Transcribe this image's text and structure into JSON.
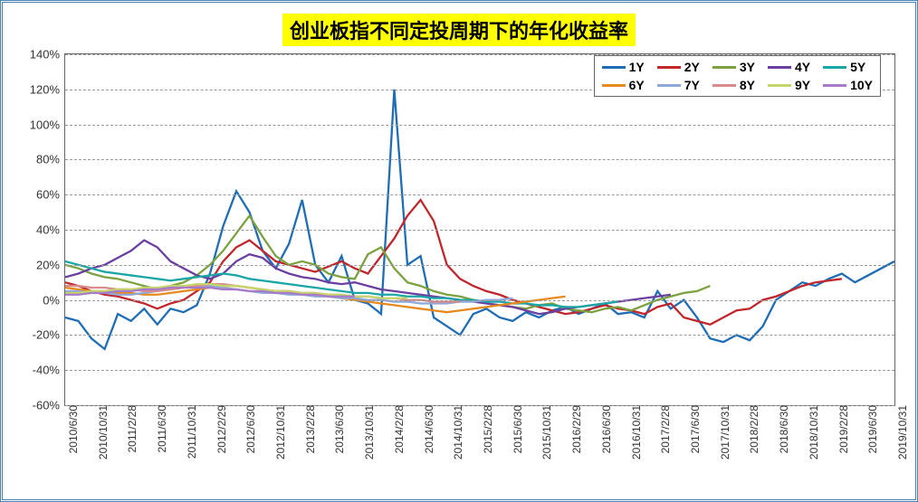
{
  "chart": {
    "type": "line",
    "title": "创业板指不同定投周期下的年化收益率",
    "title_bg": "#ffff00",
    "title_fontsize": 22,
    "background_color": "#ffffff",
    "frame_border": "#4682b4",
    "axis_color": "#666666",
    "grid_color": "#999999",
    "grid_dash": "4,3",
    "label_fontsize": 13,
    "xlabel_fontsize": 12,
    "ylim": [
      -60,
      140
    ],
    "ytick_step": 20,
    "yticks": [
      "-60%",
      "-40%",
      "-20%",
      "0%",
      "20%",
      "40%",
      "60%",
      "80%",
      "100%",
      "120%",
      "140%"
    ],
    "xticks": [
      "2010/6/30",
      "2010/10/31",
      "2011/2/28",
      "2011/6/30",
      "2011/10/31",
      "2012/2/29",
      "2012/6/30",
      "2012/10/31",
      "2013/2/28",
      "2013/6/30",
      "2013/10/31",
      "2014/2/28",
      "2014/6/30",
      "2014/10/31",
      "2015/2/28",
      "2015/6/30",
      "2015/10/31",
      "2016/2/29",
      "2016/6/30",
      "2016/10/31",
      "2017/2/28",
      "2017/6/30",
      "2017/10/31",
      "2018/2/28",
      "2018/6/30",
      "2018/10/31",
      "2019/2/28",
      "2019/6/30",
      "2019/10/31"
    ],
    "legend": {
      "position": "top-right",
      "border": "#666666",
      "bg": "#ffffff",
      "fontsize": 14,
      "fontweight": "bold"
    },
    "series": [
      {
        "name": "1Y",
        "color": "#1f6db5",
        "width": 2.3,
        "data": [
          -10,
          -12,
          -22,
          -28,
          -8,
          -12,
          -5,
          -14,
          -5,
          -7,
          -3,
          15,
          42,
          62,
          50,
          28,
          18,
          32,
          57,
          20,
          10,
          25,
          0,
          -2,
          -8,
          120,
          20,
          25,
          -10,
          -15,
          -20,
          -8,
          -5,
          -10,
          -12,
          -7,
          -10,
          -6,
          -4,
          -8,
          -5,
          -2,
          -8,
          -7,
          -10,
          5,
          -5,
          0,
          -10,
          -22,
          -24,
          -20,
          -23,
          -15,
          0,
          5,
          10,
          8,
          12,
          15,
          10,
          14,
          18,
          22
        ]
      },
      {
        "name": "2Y",
        "color": "#c0262c",
        "width": 2.3,
        "data": [
          10,
          8,
          5,
          3,
          2,
          0,
          -2,
          -5,
          -2,
          0,
          5,
          10,
          22,
          30,
          34,
          28,
          22,
          20,
          18,
          16,
          19,
          22,
          18,
          15,
          25,
          35,
          48,
          57,
          45,
          20,
          12,
          8,
          5,
          3,
          0,
          -2,
          -4,
          -6,
          -8,
          -7,
          -5,
          -3,
          -5,
          -6,
          -8,
          -4,
          -2,
          -10,
          -12,
          -14,
          -10,
          -6,
          -5,
          0,
          2,
          5,
          8,
          10,
          11,
          12
        ]
      },
      {
        "name": "3Y",
        "color": "#7ba23f",
        "width": 2.3,
        "data": [
          20,
          18,
          15,
          13,
          12,
          10,
          8,
          6,
          8,
          10,
          14,
          20,
          28,
          38,
          48,
          36,
          25,
          20,
          22,
          20,
          15,
          13,
          12,
          26,
          30,
          18,
          10,
          8,
          5,
          3,
          2,
          0,
          -2,
          -3,
          -4,
          -5,
          -3,
          -2,
          -5,
          -6,
          -7,
          -5,
          -4,
          -6,
          -3,
          0,
          2,
          4,
          5,
          8
        ]
      },
      {
        "name": "4Y",
        "color": "#6b3fa0",
        "width": 2.3,
        "data": [
          13,
          15,
          18,
          20,
          24,
          28,
          34,
          30,
          22,
          18,
          14,
          12,
          15,
          22,
          26,
          24,
          18,
          15,
          13,
          12,
          10,
          9,
          10,
          8,
          6,
          5,
          4,
          3,
          2,
          1,
          0,
          -1,
          -2,
          -3,
          -4,
          -6,
          -8,
          -7,
          -5,
          -4,
          -3,
          -2,
          -1,
          0,
          1,
          2,
          3
        ]
      },
      {
        "name": "5Y",
        "color": "#1aa6a6",
        "width": 2.3,
        "data": [
          22,
          20,
          18,
          16,
          15,
          14,
          13,
          12,
          11,
          12,
          13,
          14,
          15,
          14,
          12,
          11,
          10,
          9,
          8,
          7,
          6,
          5,
          4,
          4,
          3,
          3,
          2,
          2,
          1,
          1,
          0,
          0,
          -1,
          -1,
          -2,
          -2,
          -3,
          -3,
          -4,
          -4,
          -3,
          -2,
          -1
        ]
      },
      {
        "name": "6Y",
        "color": "#e68a1e",
        "width": 2.3,
        "data": [
          7,
          6,
          5,
          5,
          4,
          4,
          3,
          3,
          4,
          5,
          6,
          7,
          8,
          8,
          7,
          6,
          5,
          5,
          4,
          3,
          2,
          1,
          0,
          -1,
          -2,
          -3,
          -4,
          -5,
          -6,
          -7,
          -6,
          -5,
          -4,
          -3,
          -2,
          -1,
          0,
          1,
          2
        ]
      },
      {
        "name": "7Y",
        "color": "#8fa8d8",
        "width": 2.3,
        "data": [
          5,
          5,
          4,
          4,
          3,
          3,
          4,
          5,
          6,
          7,
          8,
          8,
          7,
          6,
          5,
          4,
          4,
          3,
          3,
          2,
          2,
          1,
          1,
          0,
          0,
          -1,
          -1,
          -2,
          -2,
          -2,
          -1,
          -1,
          0,
          0,
          1
        ]
      },
      {
        "name": "8Y",
        "color": "#d98b8b",
        "width": 2.3,
        "data": [
          8,
          8,
          7,
          7,
          6,
          6,
          5,
          5,
          6,
          7,
          8,
          9,
          9,
          8,
          7,
          6,
          5,
          5,
          4,
          4,
          3,
          3,
          2,
          2,
          1,
          1,
          0,
          0,
          -1,
          -1,
          -1
        ]
      },
      {
        "name": "9Y",
        "color": "#c6d66a",
        "width": 2.3,
        "data": [
          4,
          4,
          5,
          5,
          6,
          6,
          7,
          7,
          8,
          8,
          9,
          9,
          8,
          8,
          7,
          6,
          5,
          5,
          4,
          4,
          3,
          3,
          2,
          2,
          1,
          1,
          1
        ]
      },
      {
        "name": "10Y",
        "color": "#a77bc9",
        "width": 2.3,
        "data": [
          3,
          3,
          4,
          4,
          5,
          5,
          6,
          6,
          7,
          7,
          7,
          7,
          6,
          6,
          5,
          5,
          4,
          4,
          3,
          3,
          2,
          2,
          2
        ]
      }
    ]
  }
}
